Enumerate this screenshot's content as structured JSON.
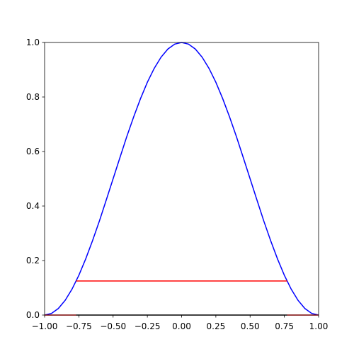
{
  "chart_data": {
    "type": "line",
    "xlim": [
      -1,
      1
    ],
    "ylim": [
      0,
      1
    ],
    "xticks": [
      {
        "value": -1,
        "label": "−1.00"
      },
      {
        "value": -0.75,
        "label": "−0.75"
      },
      {
        "value": -0.5,
        "label": "−0.50"
      },
      {
        "value": -0.25,
        "label": "−0.25"
      },
      {
        "value": 0,
        "label": "0.00"
      },
      {
        "value": 0.25,
        "label": "0.25"
      },
      {
        "value": 0.5,
        "label": "0.50"
      },
      {
        "value": 0.75,
        "label": "0.75"
      },
      {
        "value": 1,
        "label": "1.00"
      }
    ],
    "yticks": [
      {
        "value": 0,
        "label": "0.0"
      },
      {
        "value": 0.2,
        "label": "0.2"
      },
      {
        "value": 0.4,
        "label": "0.4"
      },
      {
        "value": 0.6,
        "label": "0.6"
      },
      {
        "value": 0.8,
        "label": "0.8"
      },
      {
        "value": 1,
        "label": "1.0"
      }
    ],
    "series": [
      {
        "color": "#0000ff",
        "x": [
          -1,
          -0.95,
          -0.9,
          -0.85,
          -0.8,
          -0.75,
          -0.7,
          -0.65,
          -0.6,
          -0.55,
          -0.5,
          -0.45,
          -0.4,
          -0.35,
          -0.3,
          -0.25,
          -0.2,
          -0.15,
          -0.1,
          -0.05,
          0,
          0.05,
          0.1,
          0.15,
          0.2,
          0.25,
          0.3,
          0.35,
          0.4,
          0.45,
          0.5,
          0.55,
          0.6,
          0.65,
          0.7,
          0.75,
          0.8,
          0.85,
          0.9,
          0.95,
          1
        ],
        "values": [
          0,
          0.006,
          0.024,
          0.054,
          0.095,
          0.146,
          0.206,
          0.273,
          0.345,
          0.422,
          0.5,
          0.578,
          0.655,
          0.727,
          0.794,
          0.854,
          0.905,
          0.946,
          0.976,
          0.994,
          1,
          0.994,
          0.976,
          0.946,
          0.905,
          0.854,
          0.794,
          0.727,
          0.655,
          0.578,
          0.5,
          0.422,
          0.345,
          0.273,
          0.206,
          0.146,
          0.095,
          0.054,
          0.024,
          0.006,
          0
        ]
      },
      {
        "color": "#ff0000",
        "x": [
          -1,
          -0.77,
          null,
          -0.77,
          0.77,
          null,
          0.77,
          1
        ],
        "values": [
          0,
          0,
          null,
          0.125,
          0.125,
          null,
          0,
          0
        ]
      },
      {
        "color": "#000000",
        "x": [
          -0.77,
          0.77
        ],
        "values": [
          0,
          0
        ]
      }
    ]
  }
}
